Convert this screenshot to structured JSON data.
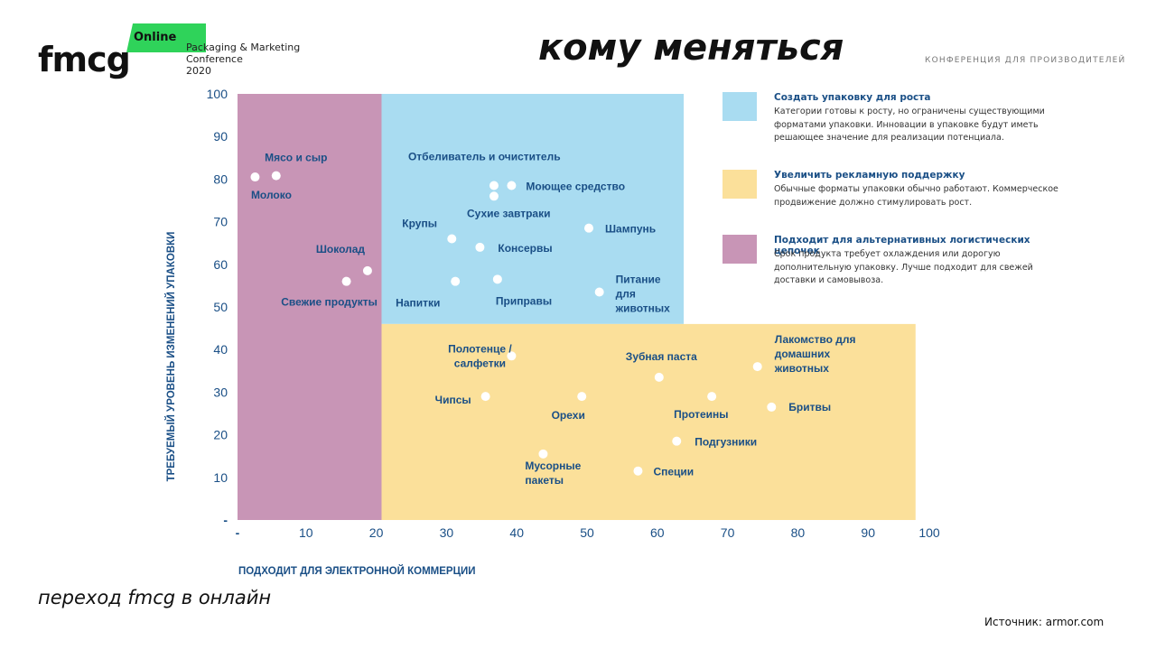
{
  "header": {
    "logo_text": "fmcg",
    "logo_badge": "Online",
    "conference": "Packaging & Marketing\nConference\n2020",
    "title": "кому меняться",
    "tagline": "КОНФЕРЕНЦИЯ ДЛЯ ПРОИЗВОДИТЕЛЕЙ"
  },
  "footer": {
    "tag": "переход fmcg в онлайн",
    "source": "Источник: armor.com"
  },
  "legend": [
    {
      "title": "Создать упаковку для роста",
      "desc": "Категории готовы к росту, но ограничены существующими форматами упаковки. Инновации в упаковке будут иметь решающее значение для реализации потенциала.",
      "color": "#a9dcf1"
    },
    {
      "title": "Увеличить рекламную поддержку",
      "desc": "Обычные форматы упаковки обычно работают. Коммерческое продвижение должно стимулировать рост.",
      "color": "#fbe09a"
    },
    {
      "title": "Подходит для альтернативных логистических цепочек",
      "desc": "Срок продукта требует охлаждения или дорогую дополнительную упаковку. Лучше подходит для свежей доставки и самовывоза.",
      "color": "#c895b6"
    }
  ],
  "chart_data": {
    "type": "scatter",
    "xlabel": "ПОДХОДИТ ДЛЯ ЭЛЕКТРОННОЙ КОММЕРЦИИ",
    "ylabel": "ТРЕБУЕМЫЙ УРОВЕНЬ ИЗМЕНЕНИЙ УПАКОВКИ",
    "xlim": [
      0,
      100
    ],
    "ylim": [
      0,
      100
    ],
    "x_ticks": [
      "-",
      "10",
      "20",
      "30",
      "40",
      "50",
      "60",
      "70",
      "80",
      "90",
      "100"
    ],
    "y_ticks": [
      "-",
      "10",
      "20",
      "30",
      "40",
      "50",
      "60",
      "70",
      "80",
      "90",
      "100"
    ],
    "regions": [
      {
        "color": "#c895b6",
        "x": [
          0,
          20.5
        ],
        "y": [
          0,
          100
        ]
      },
      {
        "color": "#a9dcf1",
        "x": [
          20.5,
          63.5
        ],
        "y": [
          46,
          100
        ]
      },
      {
        "color": "#fbe09a",
        "x": [
          20.5,
          96.5
        ],
        "y": [
          0,
          46
        ]
      }
    ],
    "points": [
      {
        "label": "Молоко",
        "x": 2.5,
        "y": 80.5
      },
      {
        "label": "Мясо и сыр",
        "x": 5.5,
        "y": 80.8
      },
      {
        "label": "Шоколад",
        "x": 18.5,
        "y": 58.5
      },
      {
        "label": "Свежие продукты",
        "x": 15.5,
        "y": 56
      },
      {
        "label": "Отбеливатель и очиститель",
        "x": 36.5,
        "y": 78.5
      },
      {
        "label": "Моющее средство",
        "x": 39,
        "y": 78.5
      },
      {
        "label": "Сухие завтраки",
        "x": 36.5,
        "y": 76
      },
      {
        "label": "Крупы",
        "x": 30.5,
        "y": 66
      },
      {
        "label": "Консервы",
        "x": 34.5,
        "y": 64
      },
      {
        "label": "Шампунь",
        "x": 50,
        "y": 68.5
      },
      {
        "label": "Напитки",
        "x": 31,
        "y": 56
      },
      {
        "label": "Приправы",
        "x": 37,
        "y": 56.5
      },
      {
        "label": "Питание для животных",
        "x": 51.5,
        "y": 53.5
      },
      {
        "label": "Полотенце / салфетки",
        "x": 39,
        "y": 38.5
      },
      {
        "label": "Чипсы",
        "x": 35.3,
        "y": 29
      },
      {
        "label": "Орехи",
        "x": 49,
        "y": 29
      },
      {
        "label": "Зубная паста",
        "x": 60,
        "y": 33.5
      },
      {
        "label": "Лакомство для домашних животных",
        "x": 74,
        "y": 36
      },
      {
        "label": "Протеины",
        "x": 67.5,
        "y": 29
      },
      {
        "label": "Бритвы",
        "x": 76,
        "y": 26.5
      },
      {
        "label": "Подгузники",
        "x": 62.5,
        "y": 18.5
      },
      {
        "label": "Мусорные пакеты",
        "x": 43.5,
        "y": 15.5
      },
      {
        "label": "Специи",
        "x": 57,
        "y": 11.5
      }
    ]
  }
}
